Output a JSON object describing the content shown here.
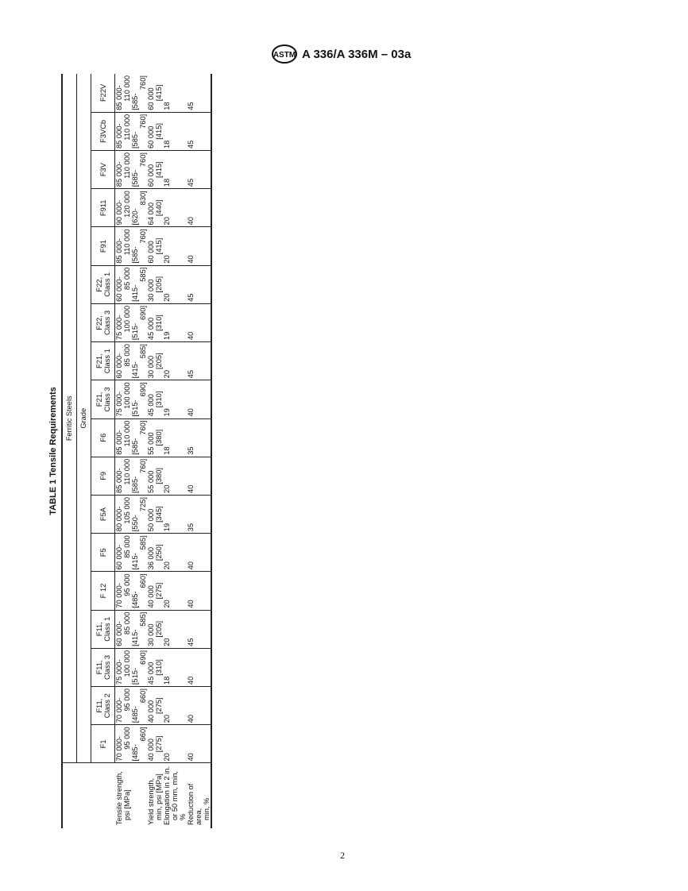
{
  "header": {
    "logo_text": "ASTM",
    "designation": "A 336/A 336M – 03a"
  },
  "table": {
    "title": "TABLE 1 Tensile Requirements",
    "group_heading": "Ferritic Steels",
    "grade_heading": "Grade",
    "row_labels": {
      "tensile": [
        "Tensile strength,",
        "psi [MPa]"
      ],
      "yield": [
        "Yield strength,",
        "min, psi [MPa]"
      ],
      "elongation": [
        "Elongation in 2 in.",
        "or 50 mm, min,",
        "%"
      ],
      "reduction": [
        "Reduction of area,",
        "min, %"
      ]
    },
    "grades": [
      {
        "name": "F1",
        "tensile": [
          "70 000-",
          "95 000",
          "[485-",
          "660]"
        ],
        "yield": [
          "40 000",
          "[275]"
        ],
        "elongation": "20",
        "reduction": "40"
      },
      {
        "name": "F11, Class 2",
        "tensile": [
          "70 000-",
          "95 000",
          "[485-",
          "660]"
        ],
        "yield": [
          "40 000",
          "[275]"
        ],
        "elongation": "20",
        "reduction": "40"
      },
      {
        "name": "F11, Class 3",
        "tensile": [
          "75 000-",
          "100 000",
          "[515-",
          "690]"
        ],
        "yield": [
          "45 000",
          "[310]"
        ],
        "elongation": "18",
        "reduction": "40"
      },
      {
        "name": "F11, Class 1",
        "tensile": [
          "60 000-",
          "85 000",
          "[415-",
          "585]"
        ],
        "yield": [
          "30 000",
          "[205]"
        ],
        "elongation": "20",
        "reduction": "45"
      },
      {
        "name": "F 12",
        "tensile": [
          "70 000-",
          "95 000",
          "[485-",
          "660]"
        ],
        "yield": [
          "40 000",
          "[275]"
        ],
        "elongation": "20",
        "reduction": "40"
      },
      {
        "name": "F5",
        "tensile": [
          "60 000-",
          "85 000",
          "[415-",
          "585]"
        ],
        "yield": [
          "36 000",
          "[250]"
        ],
        "elongation": "20",
        "reduction": "40"
      },
      {
        "name": "F5A",
        "tensile": [
          "80 000-",
          "105 000",
          "[550-",
          "725]"
        ],
        "yield": [
          "50 000",
          "[345]"
        ],
        "elongation": "19",
        "reduction": "35"
      },
      {
        "name": "F9",
        "tensile": [
          "85 000-",
          "110 000",
          "[585-",
          "760]"
        ],
        "yield": [
          "55 000",
          "[380]"
        ],
        "elongation": "20",
        "reduction": "40"
      },
      {
        "name": "F6",
        "tensile": [
          "85 000-",
          "110 000",
          "[585-",
          "760]"
        ],
        "yield": [
          "55 000",
          "[380]"
        ],
        "elongation": "18",
        "reduction": "35"
      },
      {
        "name": "F21, Class 3",
        "tensile": [
          "75 000-",
          "100 000",
          "[515-",
          "690]"
        ],
        "yield": [
          "45 000",
          "[310]"
        ],
        "elongation": "19",
        "reduction": "40"
      },
      {
        "name": "F21, Class 1",
        "tensile": [
          "60 000-",
          "85 000",
          "[415-",
          "585]"
        ],
        "yield": [
          "30 000",
          "[205]"
        ],
        "elongation": "20",
        "reduction": "45"
      },
      {
        "name": "F22, Class 3",
        "tensile": [
          "75 000-",
          "100 000",
          "[515-",
          "690]"
        ],
        "yield": [
          "45 000",
          "[310]"
        ],
        "elongation": "19",
        "reduction": "40"
      },
      {
        "name": "F22, Class 1",
        "tensile": [
          "60 000-",
          "85 000",
          "[415-",
          "585]"
        ],
        "yield": [
          "30 000",
          "[205]"
        ],
        "elongation": "20",
        "reduction": "45"
      },
      {
        "name": "F91",
        "tensile": [
          "85 000-",
          "110 000",
          "[585-",
          "760]"
        ],
        "yield": [
          "60 000",
          "[415]"
        ],
        "elongation": "20",
        "reduction": "40"
      },
      {
        "name": "F911",
        "tensile": [
          "90 000-",
          "120 000",
          "[620-",
          "830]"
        ],
        "yield": [
          "64 000",
          "[440]"
        ],
        "elongation": "20",
        "reduction": "40"
      },
      {
        "name": "F3V",
        "tensile": [
          "85 000-",
          "110 000",
          "[585-",
          "760]"
        ],
        "yield": [
          "60 000",
          "[415]"
        ],
        "elongation": "18",
        "reduction": "45"
      },
      {
        "name": "F3VCb",
        "tensile": [
          "85 000-",
          "110 000",
          "[585-",
          "760]"
        ],
        "yield": [
          "60 000",
          "[415]"
        ],
        "elongation": "18",
        "reduction": "45"
      },
      {
        "name": "F22V",
        "tensile": [
          "85 000-",
          "110 000",
          "[585-",
          "760]"
        ],
        "yield": [
          "60 000",
          "[415]"
        ],
        "elongation": "18",
        "reduction": "45"
      }
    ]
  },
  "footer": {
    "page_number": "2"
  }
}
